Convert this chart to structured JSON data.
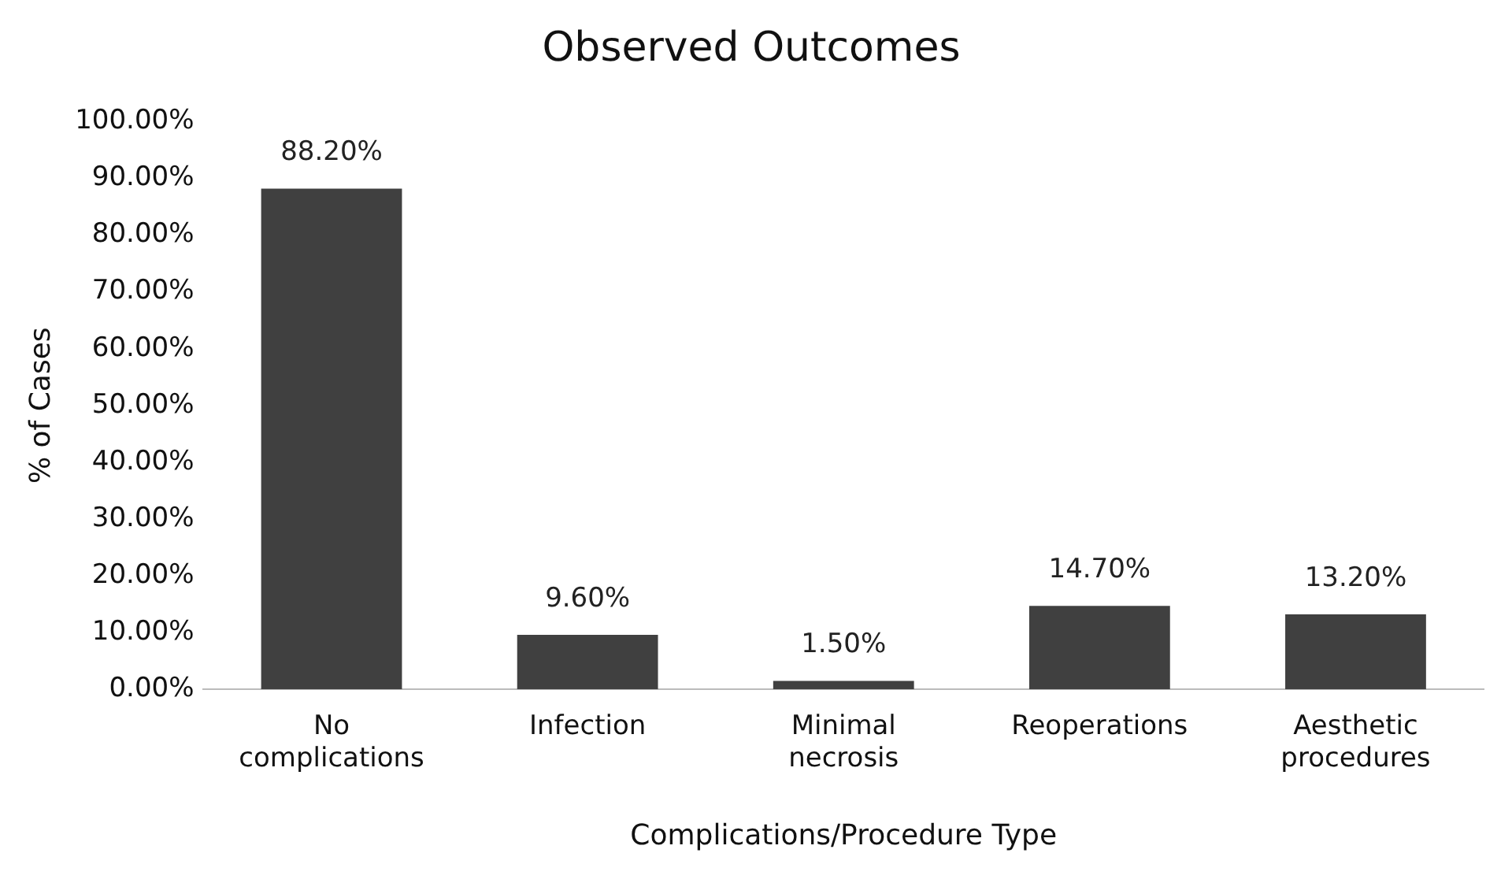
{
  "chart_data": {
    "type": "bar",
    "title": "Observed Outcomes",
    "xlabel": "Complications/Procedure Type",
    "ylabel": "% of Cases",
    "categories": [
      "No complications",
      "Infection",
      "Minimal necrosis",
      "Reoperations",
      "Aesthetic procedures"
    ],
    "values": [
      88.2,
      9.6,
      1.5,
      14.7,
      13.2
    ],
    "color": "#404040",
    "value_labels": [
      "88.20%",
      "9.60%",
      "1.50%",
      "14.70%",
      "13.20%"
    ],
    "ylim": [
      0,
      100
    ],
    "yticks": [
      {
        "value": 0,
        "label": "0.00%"
      },
      {
        "value": 10,
        "label": "10.00%"
      },
      {
        "value": 20,
        "label": "20.00%"
      },
      {
        "value": 30,
        "label": "30.00%"
      },
      {
        "value": 40,
        "label": "40.00%"
      },
      {
        "value": 50,
        "label": "50.00%"
      },
      {
        "value": 60,
        "label": "60.00%"
      },
      {
        "value": 70,
        "label": "70.00%"
      },
      {
        "value": 80,
        "label": "80.00%"
      },
      {
        "value": 90,
        "label": "90.00%"
      },
      {
        "value": 100,
        "label": "100.00%"
      }
    ],
    "grid": false,
    "legend": false
  }
}
